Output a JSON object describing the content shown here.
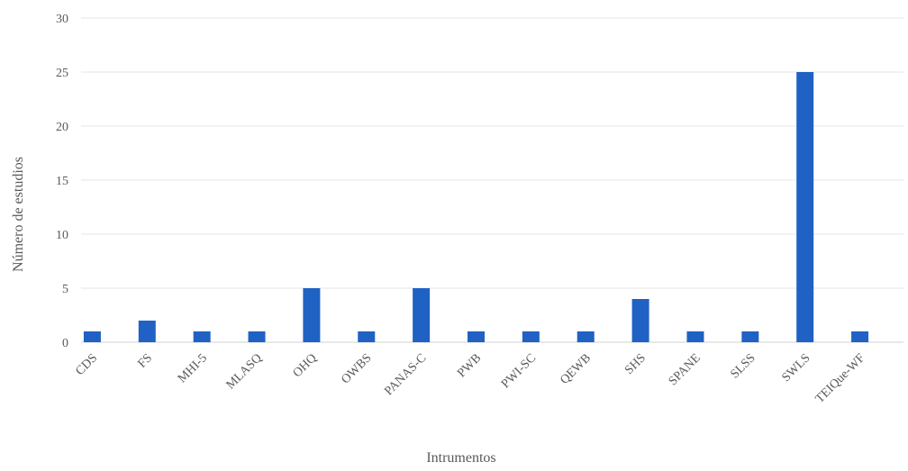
{
  "chart_data": {
    "type": "bar",
    "title": "",
    "xlabel": "Intrumentos",
    "ylabel": "Número de estudios",
    "ylim": [
      0,
      30
    ],
    "yticks": [
      0,
      5,
      10,
      15,
      20,
      25,
      30
    ],
    "grid": true,
    "legend": "none",
    "categories": [
      "CDS",
      "FS",
      "MHI-5",
      "MLASQ",
      "OHQ",
      "OWBS",
      "PANAS-C",
      "PWB",
      "PWI-SC",
      "QEWB",
      "SHS",
      "SPANE",
      "SLSS",
      "SWLS",
      "TEIQue-WF"
    ],
    "series": [
      {
        "values": [
          1,
          2,
          1,
          1,
          5,
          1,
          5,
          1,
          1,
          1,
          4,
          1,
          1,
          25,
          1
        ],
        "color": "#1f62c4"
      }
    ]
  }
}
